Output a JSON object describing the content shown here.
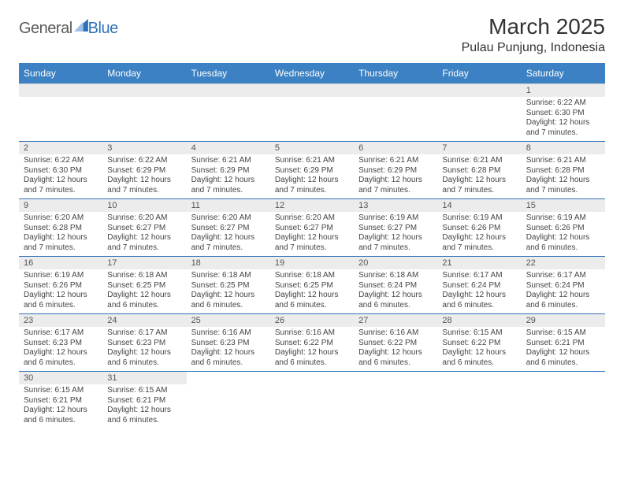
{
  "brand": {
    "part1": "General",
    "part2": "Blue",
    "sail_color": "#2f71b8"
  },
  "title": "March 2025",
  "location": "Pulau Punjung, Indonesia",
  "colors": {
    "header_bg": "#3b81c3",
    "header_text": "#ffffff",
    "daynum_bg": "#ececec",
    "row_divider": "#2f71b8",
    "text": "#444444"
  },
  "typography": {
    "title_fontsize": 28,
    "location_fontsize": 16,
    "header_fontsize": 12,
    "daynum_fontsize": 11,
    "body_fontsize": 10
  },
  "day_headers": [
    "Sunday",
    "Monday",
    "Tuesday",
    "Wednesday",
    "Thursday",
    "Friday",
    "Saturday"
  ],
  "weeks": [
    {
      "days": [
        null,
        null,
        null,
        null,
        null,
        null,
        {
          "num": "1",
          "sunrise": "Sunrise: 6:22 AM",
          "sunset": "Sunset: 6:30 PM",
          "daylight": "Daylight: 12 hours and 7 minutes."
        }
      ]
    },
    {
      "days": [
        {
          "num": "2",
          "sunrise": "Sunrise: 6:22 AM",
          "sunset": "Sunset: 6:30 PM",
          "daylight": "Daylight: 12 hours and 7 minutes."
        },
        {
          "num": "3",
          "sunrise": "Sunrise: 6:22 AM",
          "sunset": "Sunset: 6:29 PM",
          "daylight": "Daylight: 12 hours and 7 minutes."
        },
        {
          "num": "4",
          "sunrise": "Sunrise: 6:21 AM",
          "sunset": "Sunset: 6:29 PM",
          "daylight": "Daylight: 12 hours and 7 minutes."
        },
        {
          "num": "5",
          "sunrise": "Sunrise: 6:21 AM",
          "sunset": "Sunset: 6:29 PM",
          "daylight": "Daylight: 12 hours and 7 minutes."
        },
        {
          "num": "6",
          "sunrise": "Sunrise: 6:21 AM",
          "sunset": "Sunset: 6:29 PM",
          "daylight": "Daylight: 12 hours and 7 minutes."
        },
        {
          "num": "7",
          "sunrise": "Sunrise: 6:21 AM",
          "sunset": "Sunset: 6:28 PM",
          "daylight": "Daylight: 12 hours and 7 minutes."
        },
        {
          "num": "8",
          "sunrise": "Sunrise: 6:21 AM",
          "sunset": "Sunset: 6:28 PM",
          "daylight": "Daylight: 12 hours and 7 minutes."
        }
      ]
    },
    {
      "days": [
        {
          "num": "9",
          "sunrise": "Sunrise: 6:20 AM",
          "sunset": "Sunset: 6:28 PM",
          "daylight": "Daylight: 12 hours and 7 minutes."
        },
        {
          "num": "10",
          "sunrise": "Sunrise: 6:20 AM",
          "sunset": "Sunset: 6:27 PM",
          "daylight": "Daylight: 12 hours and 7 minutes."
        },
        {
          "num": "11",
          "sunrise": "Sunrise: 6:20 AM",
          "sunset": "Sunset: 6:27 PM",
          "daylight": "Daylight: 12 hours and 7 minutes."
        },
        {
          "num": "12",
          "sunrise": "Sunrise: 6:20 AM",
          "sunset": "Sunset: 6:27 PM",
          "daylight": "Daylight: 12 hours and 7 minutes."
        },
        {
          "num": "13",
          "sunrise": "Sunrise: 6:19 AM",
          "sunset": "Sunset: 6:27 PM",
          "daylight": "Daylight: 12 hours and 7 minutes."
        },
        {
          "num": "14",
          "sunrise": "Sunrise: 6:19 AM",
          "sunset": "Sunset: 6:26 PM",
          "daylight": "Daylight: 12 hours and 7 minutes."
        },
        {
          "num": "15",
          "sunrise": "Sunrise: 6:19 AM",
          "sunset": "Sunset: 6:26 PM",
          "daylight": "Daylight: 12 hours and 6 minutes."
        }
      ]
    },
    {
      "days": [
        {
          "num": "16",
          "sunrise": "Sunrise: 6:19 AM",
          "sunset": "Sunset: 6:26 PM",
          "daylight": "Daylight: 12 hours and 6 minutes."
        },
        {
          "num": "17",
          "sunrise": "Sunrise: 6:18 AM",
          "sunset": "Sunset: 6:25 PM",
          "daylight": "Daylight: 12 hours and 6 minutes."
        },
        {
          "num": "18",
          "sunrise": "Sunrise: 6:18 AM",
          "sunset": "Sunset: 6:25 PM",
          "daylight": "Daylight: 12 hours and 6 minutes."
        },
        {
          "num": "19",
          "sunrise": "Sunrise: 6:18 AM",
          "sunset": "Sunset: 6:25 PM",
          "daylight": "Daylight: 12 hours and 6 minutes."
        },
        {
          "num": "20",
          "sunrise": "Sunrise: 6:18 AM",
          "sunset": "Sunset: 6:24 PM",
          "daylight": "Daylight: 12 hours and 6 minutes."
        },
        {
          "num": "21",
          "sunrise": "Sunrise: 6:17 AM",
          "sunset": "Sunset: 6:24 PM",
          "daylight": "Daylight: 12 hours and 6 minutes."
        },
        {
          "num": "22",
          "sunrise": "Sunrise: 6:17 AM",
          "sunset": "Sunset: 6:24 PM",
          "daylight": "Daylight: 12 hours and 6 minutes."
        }
      ]
    },
    {
      "days": [
        {
          "num": "23",
          "sunrise": "Sunrise: 6:17 AM",
          "sunset": "Sunset: 6:23 PM",
          "daylight": "Daylight: 12 hours and 6 minutes."
        },
        {
          "num": "24",
          "sunrise": "Sunrise: 6:17 AM",
          "sunset": "Sunset: 6:23 PM",
          "daylight": "Daylight: 12 hours and 6 minutes."
        },
        {
          "num": "25",
          "sunrise": "Sunrise: 6:16 AM",
          "sunset": "Sunset: 6:23 PM",
          "daylight": "Daylight: 12 hours and 6 minutes."
        },
        {
          "num": "26",
          "sunrise": "Sunrise: 6:16 AM",
          "sunset": "Sunset: 6:22 PM",
          "daylight": "Daylight: 12 hours and 6 minutes."
        },
        {
          "num": "27",
          "sunrise": "Sunrise: 6:16 AM",
          "sunset": "Sunset: 6:22 PM",
          "daylight": "Daylight: 12 hours and 6 minutes."
        },
        {
          "num": "28",
          "sunrise": "Sunrise: 6:15 AM",
          "sunset": "Sunset: 6:22 PM",
          "daylight": "Daylight: 12 hours and 6 minutes."
        },
        {
          "num": "29",
          "sunrise": "Sunrise: 6:15 AM",
          "sunset": "Sunset: 6:21 PM",
          "daylight": "Daylight: 12 hours and 6 minutes."
        }
      ]
    },
    {
      "days": [
        {
          "num": "30",
          "sunrise": "Sunrise: 6:15 AM",
          "sunset": "Sunset: 6:21 PM",
          "daylight": "Daylight: 12 hours and 6 minutes."
        },
        {
          "num": "31",
          "sunrise": "Sunrise: 6:15 AM",
          "sunset": "Sunset: 6:21 PM",
          "daylight": "Daylight: 12 hours and 6 minutes."
        },
        null,
        null,
        null,
        null,
        null
      ]
    }
  ]
}
